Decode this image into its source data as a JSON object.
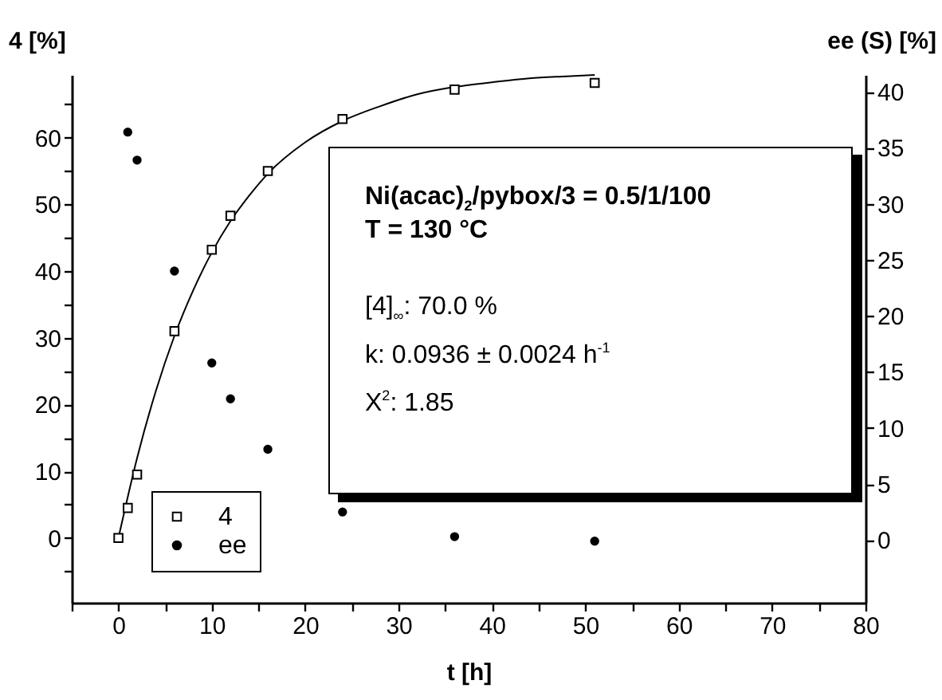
{
  "chart_data": {
    "type": "scatter",
    "xlabel": "t [h]",
    "ylabel": "4 [%]",
    "y2label": "ee (S) [%]",
    "xlim": [
      -5,
      80
    ],
    "xticks": [
      {
        "value": -5,
        "label": null
      },
      0,
      {
        "value": 5,
        "label": null
      },
      10,
      {
        "value": 15,
        "label": null
      },
      20,
      {
        "value": 25,
        "label": null
      },
      30,
      {
        "value": 35,
        "label": null
      },
      40,
      {
        "value": 45,
        "label": null
      },
      50,
      {
        "value": 55,
        "label": null
      },
      60,
      {
        "value": 65,
        "label": null
      },
      70,
      {
        "value": 75,
        "label": null
      },
      80
    ],
    "ylim": [
      -9.7,
      69.4
    ],
    "yticks": [
      {
        "value": -5,
        "label": null
      },
      0,
      {
        "value": 5,
        "label": null
      },
      10,
      {
        "value": 15,
        "label": null
      },
      20,
      {
        "value": 25,
        "label": null
      },
      30,
      {
        "value": 35,
        "label": null
      },
      40,
      {
        "value": 45,
        "label": null
      },
      50,
      {
        "value": 55,
        "label": null
      },
      60,
      {
        "value": 65,
        "label": null
      }
    ],
    "y2lim": [
      -5.6,
      41.5
    ],
    "y2ticks": [
      0,
      5,
      10,
      15,
      20,
      25,
      30,
      35,
      40
    ],
    "legend": "bottom left",
    "grid": false,
    "annotations": [
      "Ni(acac)$_{2}$/pybox/3 = 0.5/1/100",
      "T = 130 °C",
      "[4]$_{∞}$: 70.0 %",
      "k: 0.0936 ± 0.0024 h$^{-1}$",
      "X$^{2}$: 1.85"
    ],
    "series": [
      {
        "type": "line",
        "color": "#000000",
        "marker": "none",
        "line_style": "solid",
        "x": [
          0,
          2,
          4,
          6,
          8,
          10,
          12,
          14,
          16,
          20,
          24,
          28,
          32,
          36,
          40,
          44,
          48,
          51
        ],
        "values": [
          0,
          12.0,
          22.0,
          30.3,
          37.1,
          42.8,
          47.5,
          51.3,
          54.6,
          59.3,
          62.5,
          64.7,
          66.5,
          67.6,
          68.3,
          68.9,
          69.2,
          69.4
        ]
      },
      {
        "name": "4",
        "color": "#000000",
        "marker": "square",
        "x": [
          0,
          1,
          2,
          6,
          10,
          12,
          16,
          24,
          36,
          51
        ],
        "values": [
          0,
          4.5,
          9.5,
          31,
          43.2,
          48.3,
          55,
          62.8,
          67.2,
          68.2
        ]
      },
      {
        "name": "ee",
        "color": "#000000",
        "marker": "circle",
        "axis": "y2",
        "x": [
          1,
          2,
          6,
          10,
          12,
          16,
          24,
          36,
          51
        ],
        "values": [
          36.4,
          33.9,
          24.0,
          15.8,
          12.6,
          8.1,
          2.5,
          0.3,
          -0.1
        ]
      }
    ]
  }
}
